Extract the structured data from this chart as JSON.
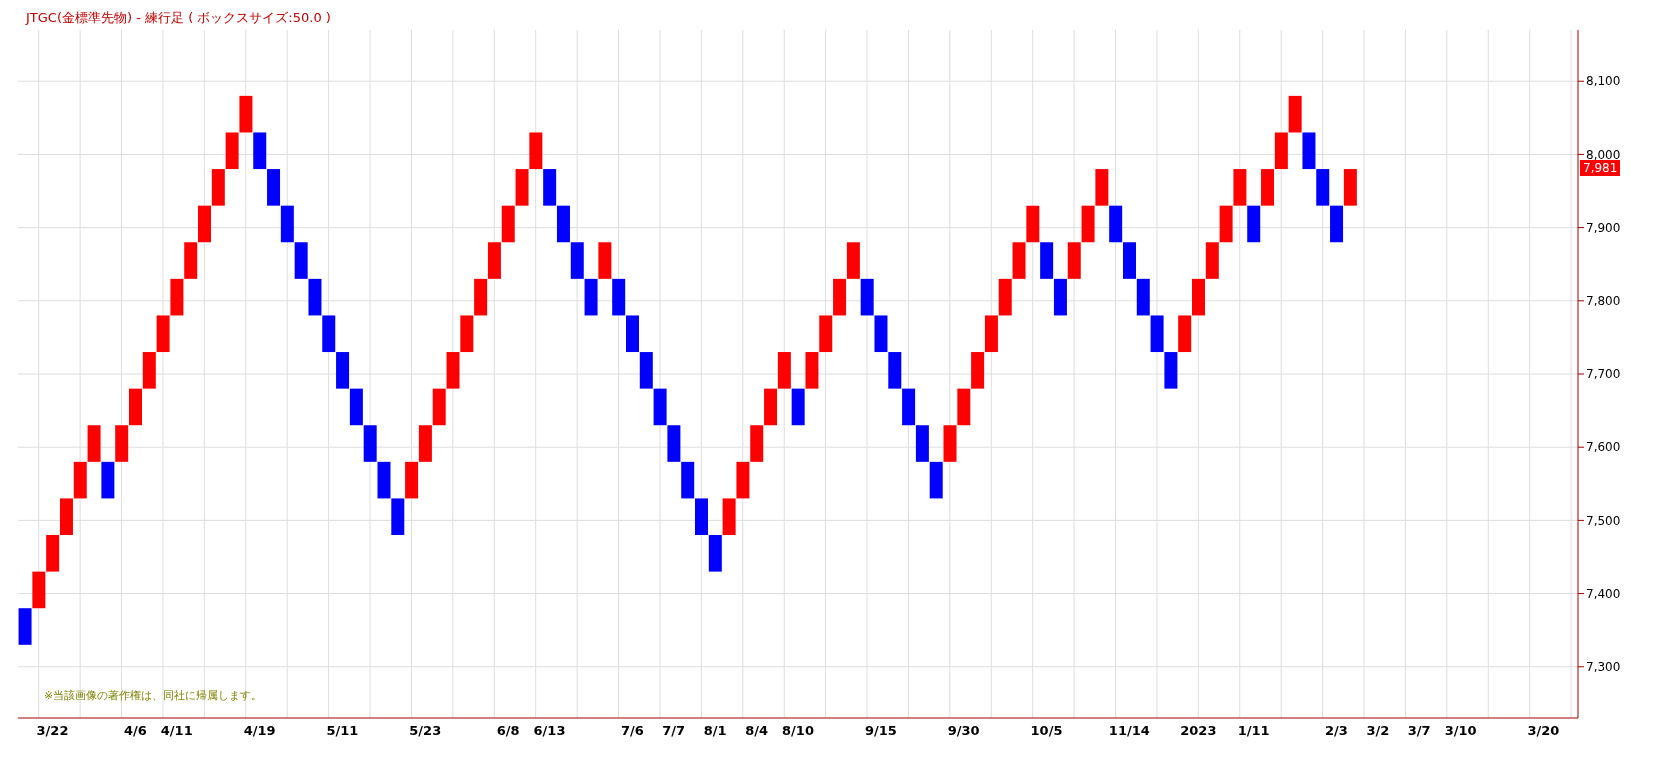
{
  "chart_data": {
    "type": "bar",
    "title": "JTGC(金標準先物) - 練行足 ( ボックスサイズ:50.0 )",
    "categories": [
      null,
      null,
      "3/22",
      null,
      null,
      null,
      null,
      null,
      "4/6",
      null,
      null,
      "4/11",
      null,
      null,
      null,
      null,
      null,
      "4/19",
      null,
      null,
      null,
      null,
      null,
      "5/11",
      null,
      null,
      null,
      null,
      null,
      "5/23",
      null,
      null,
      null,
      null,
      null,
      "6/8",
      null,
      null,
      "6/13",
      null,
      null,
      null,
      null,
      null,
      "7/6",
      null,
      null,
      "7/7",
      null,
      null,
      "8/1",
      null,
      null,
      "8/4",
      null,
      null,
      "8/10",
      null,
      null,
      null,
      null,
      null,
      "9/15",
      null,
      null,
      null,
      null,
      null,
      "9/30",
      null,
      null,
      null,
      null,
      null,
      "10/5",
      null,
      null,
      null,
      null,
      null,
      "11/14",
      null,
      null,
      null,
      null,
      "2023",
      null,
      null,
      null,
      "1/11",
      null,
      null,
      null,
      null,
      null,
      "2/3",
      null,
      null,
      "3/2",
      null,
      null,
      "3/7",
      null,
      null,
      "3/10",
      null,
      null,
      null,
      null,
      null,
      "3/20",
      null,
      null
    ],
    "base": [
      7330,
      7380,
      7430,
      7480,
      7530,
      7580,
      7530,
      7580,
      7630,
      7680,
      7730,
      7780,
      7830,
      7880,
      7930,
      7980,
      8030,
      7980,
      7930,
      7880,
      7830,
      7780,
      7730,
      7680,
      7630,
      7580,
      7530,
      7480,
      7530,
      7580,
      7630,
      7680,
      7730,
      7780,
      7830,
      7880,
      7930,
      7980,
      7930,
      7880,
      7830,
      7780,
      7830,
      7780,
      7730,
      7680,
      7630,
      7580,
      7530,
      7480,
      7430,
      7480,
      7530,
      7580,
      7630,
      7680,
      7630,
      7680,
      7730,
      7780,
      7830,
      7780,
      7730,
      7680,
      7630,
      7580,
      7530,
      7580,
      7630,
      7680,
      7730,
      7780,
      7830,
      7880,
      7830,
      7780,
      7830,
      7880,
      7930,
      7880,
      7830,
      7780,
      7730,
      7680,
      7730,
      7780,
      7830,
      7880,
      7930,
      7880,
      7930,
      7980,
      8030,
      7980,
      7930,
      7880,
      7930,
      null,
      null,
      null,
      null,
      null,
      null,
      null,
      null,
      null,
      null,
      null,
      null,
      null,
      null,
      null,
      null
    ],
    "values": [
      50,
      50,
      50,
      50,
      50,
      50,
      50,
      50,
      50,
      50,
      50,
      50,
      50,
      50,
      50,
      50,
      50,
      50,
      50,
      50,
      50,
      50,
      50,
      50,
      50,
      50,
      50,
      50,
      50,
      50,
      50,
      50,
      50,
      50,
      50,
      50,
      50,
      50,
      50,
      50,
      50,
      50,
      50,
      50,
      50,
      50,
      50,
      50,
      50,
      50,
      50,
      50,
      50,
      50,
      50,
      50,
      50,
      50,
      50,
      50,
      50,
      50,
      50,
      50,
      50,
      50,
      50,
      50,
      50,
      50,
      50,
      50,
      50,
      50,
      50,
      50,
      50,
      50,
      50,
      50,
      50,
      50,
      50,
      50,
      50,
      50,
      50,
      50,
      50,
      50,
      50,
      50,
      50,
      50,
      50,
      50,
      50,
      null,
      null,
      null,
      null,
      null,
      null,
      null,
      null,
      null,
      null,
      null,
      null,
      null,
      null,
      null,
      null
    ],
    "colors": [
      "#0000ff",
      "#ff0000",
      "#ff0000",
      "#ff0000",
      "#ff0000",
      "#ff0000",
      "#0000ff",
      "#ff0000",
      "#ff0000",
      "#ff0000",
      "#ff0000",
      "#ff0000",
      "#ff0000",
      "#ff0000",
      "#ff0000",
      "#ff0000",
      "#ff0000",
      "#0000ff",
      "#0000ff",
      "#0000ff",
      "#0000ff",
      "#0000ff",
      "#0000ff",
      "#0000ff",
      "#0000ff",
      "#0000ff",
      "#0000ff",
      "#0000ff",
      "#ff0000",
      "#ff0000",
      "#ff0000",
      "#ff0000",
      "#ff0000",
      "#ff0000",
      "#ff0000",
      "#ff0000",
      "#ff0000",
      "#ff0000",
      "#0000ff",
      "#0000ff",
      "#0000ff",
      "#0000ff",
      "#ff0000",
      "#0000ff",
      "#0000ff",
      "#0000ff",
      "#0000ff",
      "#0000ff",
      "#0000ff",
      "#0000ff",
      "#0000ff",
      "#ff0000",
      "#ff0000",
      "#ff0000",
      "#ff0000",
      "#ff0000",
      "#0000ff",
      "#ff0000",
      "#ff0000",
      "#ff0000",
      "#ff0000",
      "#0000ff",
      "#0000ff",
      "#0000ff",
      "#0000ff",
      "#0000ff",
      "#0000ff",
      "#ff0000",
      "#ff0000",
      "#ff0000",
      "#ff0000",
      "#ff0000",
      "#ff0000",
      "#ff0000",
      "#0000ff",
      "#0000ff",
      "#ff0000",
      "#ff0000",
      "#ff0000",
      "#0000ff",
      "#0000ff",
      "#0000ff",
      "#0000ff",
      "#0000ff",
      "#ff0000",
      "#ff0000",
      "#ff0000",
      "#ff0000",
      "#ff0000",
      "#0000ff",
      "#ff0000",
      "#ff0000",
      "#ff0000",
      "#0000ff",
      "#0000ff",
      "#0000ff",
      "#ff0000",
      null,
      null,
      null,
      null,
      null,
      null,
      null,
      null,
      null,
      null,
      null,
      null,
      null,
      null,
      null,
      null
    ],
    "ylim": [
      7230,
      8170
    ],
    "yticks": [
      {
        "value": 7300,
        "label": "7,300"
      },
      {
        "value": 7400,
        "label": "7,400"
      },
      {
        "value": 7500,
        "label": "7,500"
      },
      {
        "value": 7600,
        "label": "7,600"
      },
      {
        "value": 7700,
        "label": "7,700"
      },
      {
        "value": 7800,
        "label": "7,800"
      },
      {
        "value": 7900,
        "label": "7,900"
      },
      {
        "value": 8000,
        "label": "8,000"
      },
      {
        "value": 8100,
        "label": "8,100"
      }
    ],
    "grid": true,
    "annotations": [
      "※当該画像の著作権は、同社に帰属します。",
      {
        "text": "7,981",
        "y": 7981
      }
    ]
  }
}
